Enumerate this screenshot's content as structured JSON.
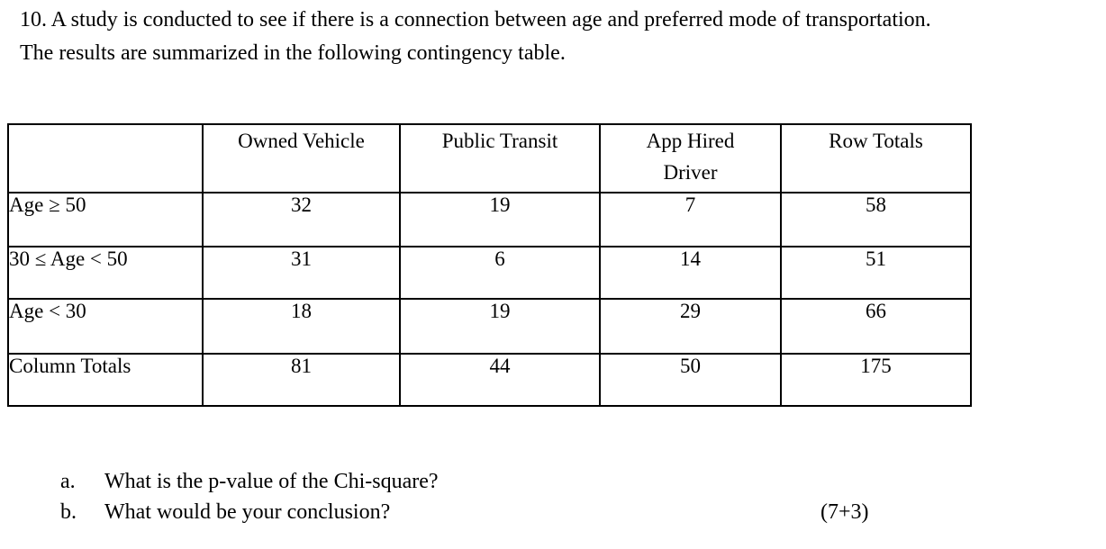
{
  "document": {
    "intro_line1": "10. A study is conducted to see if there is a connection between age and preferred mode of transportation.",
    "intro_line2": "The results are summarized in the following contingency table.",
    "table": {
      "corner_label": "",
      "col_headers": [
        "Owned Vehicle",
        "Public Transit",
        "App Hired Driver",
        "Row Totals"
      ],
      "rows": [
        {
          "label": "Age ≥ 50",
          "values": [
            "32",
            "19",
            "7",
            "58"
          ]
        },
        {
          "label": "30 ≤ Age < 50",
          "values": [
            "31",
            "6",
            "14",
            "51"
          ]
        },
        {
          "label": "Age < 30",
          "values": [
            "18",
            "19",
            "29",
            "66"
          ]
        },
        {
          "label": "Column Totals",
          "values": [
            "81",
            "44",
            "50",
            "175"
          ]
        }
      ],
      "grand_total": "175"
    },
    "questions": [
      {
        "marker": "a.",
        "text": "What is the p-value of the Chi-square?"
      },
      {
        "marker": "b.",
        "text": "What would be your conclusion?"
      }
    ],
    "points": "(7+3)",
    "colors": {
      "text": "#000000",
      "background": "#ffffff",
      "table_border": "#000000"
    }
  }
}
